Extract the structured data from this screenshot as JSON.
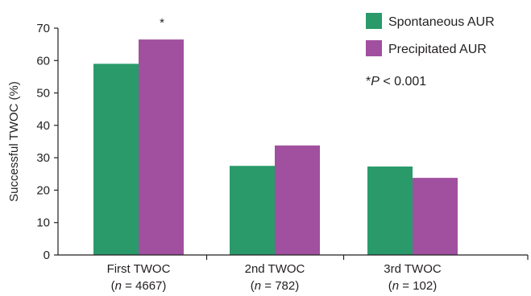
{
  "colors": {
    "spontaneous": "#2a9a6b",
    "precipitated": "#a0509f"
  },
  "chart_data": {
    "type": "bar",
    "title": "",
    "xlabel": "",
    "ylabel": "Successful TWOC (%)",
    "ylim": [
      0,
      70
    ],
    "yticks": [
      0,
      10,
      20,
      30,
      40,
      50,
      60,
      70
    ],
    "grid": false,
    "legend_position": "top-right",
    "categories": [
      {
        "label": "First TWOC",
        "n_prefix": "(",
        "n_var": "n",
        "n_eq": " = 4667)"
      },
      {
        "label": "2nd TWOC",
        "n_prefix": "(",
        "n_var": "n",
        "n_eq": " = 782)"
      },
      {
        "label": "3rd TWOC",
        "n_prefix": "(",
        "n_var": "n",
        "n_eq": " = 102)"
      }
    ],
    "series": [
      {
        "name": "Spontaneous AUR",
        "color_key": "spontaneous",
        "values": [
          59,
          27.5,
          27.3
        ]
      },
      {
        "name": "Precipitated AUR",
        "color_key": "precipitated",
        "values": [
          66.5,
          33.8,
          23.8
        ]
      }
    ],
    "significance_marker": {
      "category_index": 0,
      "symbol": "*"
    },
    "annotation": {
      "prefix": "*",
      "var": "P",
      "rest": " < 0.001"
    }
  }
}
